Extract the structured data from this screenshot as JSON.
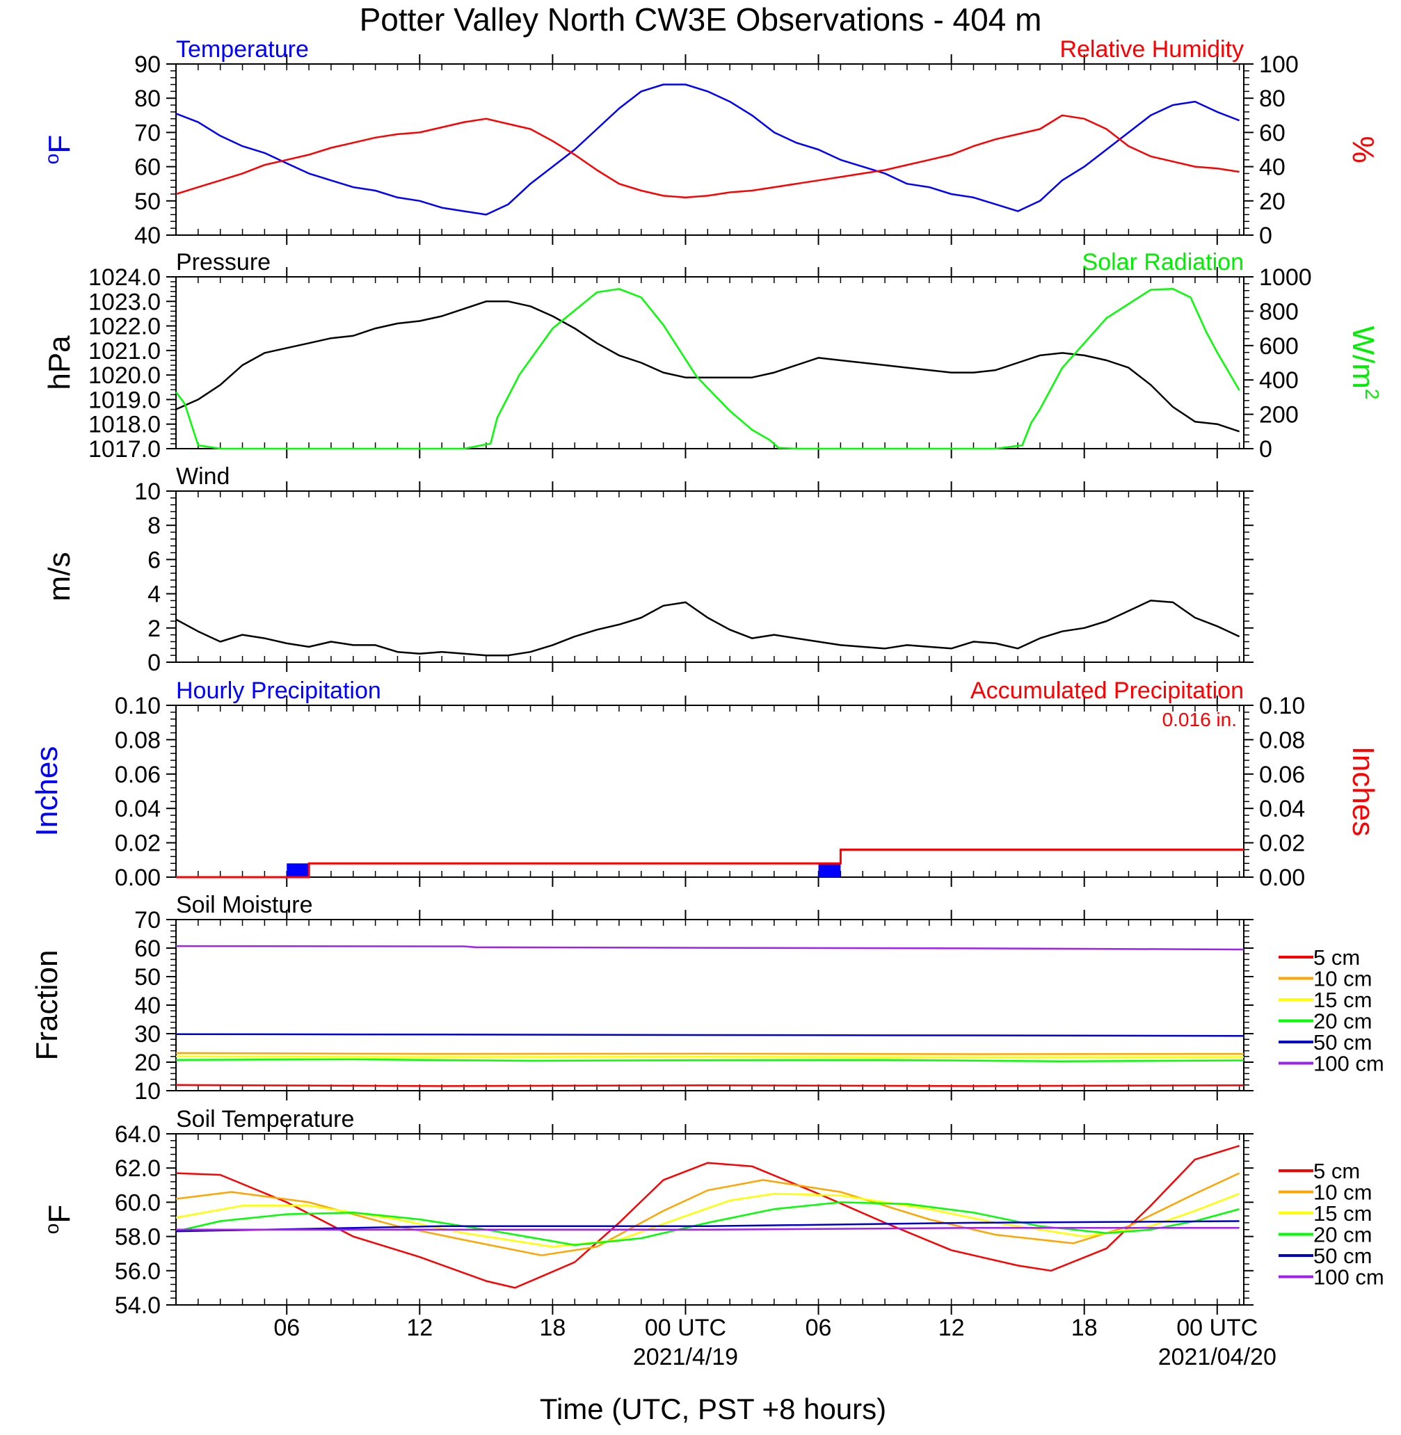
{
  "figure": {
    "title": "Potter Valley North CW3E Observations - 404 m",
    "xlabel": "Time (UTC, PST +8 hours)",
    "x_ticks": [
      {
        "hour": 6,
        "label": "06",
        "date": ""
      },
      {
        "hour": 12,
        "label": "12",
        "date": ""
      },
      {
        "hour": 18,
        "label": "18",
        "date": ""
      },
      {
        "hour": 24,
        "label": "00 UTC",
        "date": "2021/4/19"
      },
      {
        "hour": 30,
        "label": "06",
        "date": ""
      },
      {
        "hour": 36,
        "label": "12",
        "date": ""
      },
      {
        "hour": 42,
        "label": "18",
        "date": ""
      },
      {
        "hour": 48,
        "label": "00 UTC",
        "date": "2021/04/20"
      }
    ],
    "x_range_hours": [
      1,
      49.2
    ]
  },
  "chart_data": [
    {
      "id": "temp_rh",
      "type": "line",
      "title_left": "Temperature",
      "title_right": "Relative Humidity",
      "ylabel_left": "oF",
      "ylabel_right": "%",
      "ylim_left": [
        40,
        90
      ],
      "ylim_right": [
        0,
        100
      ],
      "yticks_left": [
        "90",
        "80",
        "70",
        "60",
        "50",
        "40"
      ],
      "yticks_right": [
        "100",
        "80",
        "60",
        "40",
        "20",
        "0"
      ],
      "series": [
        {
          "name": "Temperature",
          "axis": "left",
          "color": "#0000ff",
          "x": [
            1,
            2,
            3,
            4,
            5,
            6,
            7,
            8,
            9,
            10,
            11,
            12,
            13,
            14,
            15,
            16,
            17,
            18,
            19,
            20,
            21,
            22,
            23,
            24,
            25,
            26,
            27,
            28,
            29,
            30,
            31,
            32,
            33,
            34,
            35,
            36,
            37,
            38,
            39,
            40,
            41,
            42,
            43,
            44,
            45,
            46,
            47,
            48,
            49
          ],
          "y": [
            75.5,
            73,
            69,
            66,
            64,
            61,
            58,
            56,
            54,
            53,
            51,
            50,
            48,
            47,
            46,
            49,
            55,
            60,
            65,
            71,
            77,
            82,
            84,
            84,
            82,
            79,
            75,
            70,
            67,
            65,
            62,
            60,
            58,
            55,
            54,
            52,
            51,
            49,
            47,
            50,
            56,
            60,
            65,
            70,
            75,
            78,
            79,
            76,
            73.5
          ]
        },
        {
          "name": "Relative Humidity",
          "axis": "right",
          "color": "#ff0000",
          "x": [
            1,
            2,
            3,
            4,
            5,
            6,
            7,
            8,
            9,
            10,
            11,
            12,
            13,
            14,
            15,
            16,
            17,
            18,
            19,
            20,
            21,
            22,
            23,
            24,
            25,
            26,
            27,
            28,
            29,
            30,
            31,
            32,
            33,
            34,
            35,
            36,
            37,
            38,
            39,
            40,
            41,
            42,
            43,
            44,
            45,
            46,
            47,
            48,
            49
          ],
          "y": [
            24,
            28,
            32,
            36,
            41,
            44,
            47,
            51,
            54,
            57,
            59,
            60,
            63,
            66,
            68,
            65,
            62,
            55,
            47,
            38,
            30,
            26,
            23,
            22,
            23,
            25,
            26,
            28,
            30,
            32,
            34,
            36,
            38,
            41,
            44,
            47,
            52,
            56,
            59,
            62,
            70,
            68,
            62,
            52,
            46,
            43,
            40,
            39,
            37
          ]
        }
      ]
    },
    {
      "id": "pres_solar",
      "type": "line",
      "title_left": "Pressure",
      "title_right": "Solar Radiation",
      "ylabel_left": "hPa",
      "ylabel_right": "W/m",
      "ylabel_right_sup": "2",
      "ylim_left": [
        1017,
        1024
      ],
      "ylim_right": [
        0,
        1000
      ],
      "yticks_left": [
        "1024.0",
        "1023.0",
        "1022.0",
        "1021.0",
        "1020.0",
        "1019.0",
        "1018.0",
        "1017.0"
      ],
      "yticks_right": [
        "1000",
        "800",
        "600",
        "400",
        "200",
        "0"
      ],
      "series": [
        {
          "name": "Pressure",
          "axis": "left",
          "color": "#000000",
          "x": [
            1,
            2,
            3,
            4,
            5,
            6,
            7,
            8,
            9,
            10,
            11,
            12,
            13,
            14,
            15,
            16,
            17,
            18,
            19,
            20,
            21,
            22,
            23,
            24,
            25,
            26,
            27,
            28,
            29,
            30,
            31,
            32,
            33,
            34,
            35,
            36,
            37,
            38,
            39,
            40,
            41,
            42,
            43,
            44,
            45,
            46,
            47,
            48,
            49
          ],
          "y": [
            1018.6,
            1019.0,
            1019.6,
            1020.4,
            1020.9,
            1021.1,
            1021.3,
            1021.5,
            1021.6,
            1021.9,
            1022.1,
            1022.2,
            1022.4,
            1022.7,
            1023.0,
            1023.0,
            1022.8,
            1022.4,
            1021.9,
            1021.3,
            1020.8,
            1020.5,
            1020.1,
            1019.9,
            1019.9,
            1019.9,
            1019.9,
            1020.1,
            1020.4,
            1020.7,
            1020.6,
            1020.5,
            1020.4,
            1020.3,
            1020.2,
            1020.1,
            1020.1,
            1020.2,
            1020.5,
            1020.8,
            1020.9,
            1020.8,
            1020.6,
            1020.3,
            1019.6,
            1018.7,
            1018.1,
            1018.0,
            1017.7
          ]
        },
        {
          "name": "Solar Radiation",
          "axis": "right",
          "color": "#00ff00",
          "x": [
            1,
            1.4,
            2,
            3,
            5,
            8,
            11,
            14,
            15.2,
            15.5,
            16.5,
            18,
            20,
            21,
            22,
            23,
            24.5,
            26,
            27,
            27.8,
            28.2,
            29,
            32,
            35,
            38,
            39.2,
            39.6,
            40,
            41,
            43,
            45,
            46,
            46.8,
            47.5,
            48,
            49
          ],
          "y": [
            330,
            260,
            20,
            0,
            0,
            0,
            0,
            0,
            30,
            180,
            430,
            700,
            910,
            930,
            880,
            720,
            420,
            220,
            110,
            50,
            5,
            0,
            0,
            0,
            0,
            20,
            150,
            230,
            470,
            760,
            925,
            930,
            880,
            680,
            560,
            340
          ]
        }
      ]
    },
    {
      "id": "wind",
      "type": "line",
      "title_left": "Wind",
      "ylabel_left": "m/s",
      "ylim_left": [
        0,
        10
      ],
      "yticks_left": [
        "10",
        "8",
        "6",
        "4",
        "2",
        "0"
      ],
      "series": [
        {
          "name": "Wind",
          "axis": "left",
          "color": "#000000",
          "x": [
            1,
            2,
            3,
            4,
            5,
            6,
            7,
            8,
            9,
            10,
            11,
            12,
            13,
            14,
            15,
            16,
            17,
            18,
            19,
            20,
            21,
            22,
            23,
            24,
            25,
            26,
            27,
            28,
            29,
            30,
            31,
            32,
            33,
            34,
            35,
            36,
            37,
            38,
            39,
            40,
            41,
            42,
            43,
            44,
            45,
            46,
            47,
            48,
            49
          ],
          "y": [
            2.5,
            1.8,
            1.2,
            1.6,
            1.4,
            1.1,
            0.9,
            1.2,
            1.0,
            1.0,
            0.6,
            0.5,
            0.6,
            0.5,
            0.4,
            0.4,
            0.6,
            1.0,
            1.5,
            1.9,
            2.2,
            2.6,
            3.3,
            3.5,
            2.6,
            1.9,
            1.4,
            1.6,
            1.4,
            1.2,
            1.0,
            0.9,
            0.8,
            1.0,
            0.9,
            0.8,
            1.2,
            1.1,
            0.8,
            1.4,
            1.8,
            2.0,
            2.4,
            3.0,
            3.6,
            3.5,
            2.6,
            2.1,
            1.5
          ]
        }
      ]
    },
    {
      "id": "precip",
      "type": "bar",
      "title_left": "Hourly Precipitation",
      "title_right": "Accumulated Precipitation",
      "annotation": "0.016 in.",
      "ylabel_left": "Inches",
      "ylabel_right": "Inches",
      "ylim_left": [
        0,
        0.1
      ],
      "ylim_right": [
        0,
        0.1
      ],
      "yticks_left": [
        "0.10",
        "0.08",
        "0.06",
        "0.04",
        "0.02",
        "0.00"
      ],
      "yticks_right": [
        "0.10",
        "0.08",
        "0.06",
        "0.04",
        "0.02",
        "0.00"
      ],
      "bar_color": "#0000ff",
      "line_color": "#ff0000",
      "bars": [
        {
          "x": 6.5,
          "value": 0.008
        },
        {
          "x": 30.5,
          "value": 0.008
        }
      ],
      "accumulated": {
        "x": [
          1,
          7,
          7,
          31,
          31,
          49.2
        ],
        "y": [
          0,
          0,
          0.008,
          0.008,
          0.016,
          0.016
        ]
      }
    },
    {
      "id": "soil_moisture",
      "type": "line",
      "title_left": "Soil Moisture",
      "ylabel_left": "Fraction",
      "ylim_left": [
        10,
        70
      ],
      "yticks_left": [
        "70",
        "60",
        "50",
        "40",
        "30",
        "20",
        "10"
      ],
      "legend": "right",
      "series": [
        {
          "name": "5 cm",
          "color": "#ff0000",
          "x": [
            1,
            13,
            25,
            37,
            49.2
          ],
          "y": [
            12.0,
            11.6,
            11.9,
            11.6,
            11.9
          ]
        },
        {
          "name": "10 cm",
          "color": "#ffa500",
          "x": [
            1,
            13,
            25,
            37,
            49.2
          ],
          "y": [
            23.2,
            22.9,
            23.0,
            22.8,
            22.9
          ]
        },
        {
          "name": "15 cm",
          "color": "#ffff00",
          "x": [
            1,
            13,
            25,
            37,
            49.2
          ],
          "y": [
            22.0,
            21.8,
            21.9,
            21.7,
            21.8
          ]
        },
        {
          "name": "20 cm",
          "color": "#00ff00",
          "x": [
            1,
            9,
            17,
            25,
            33,
            41,
            49.2
          ],
          "y": [
            20.8,
            21.0,
            20.5,
            20.7,
            20.8,
            20.3,
            20.6
          ]
        },
        {
          "name": "50 cm",
          "color": "#0000cd",
          "x": [
            1,
            13,
            25,
            37,
            49.2
          ],
          "y": [
            29.8,
            29.7,
            29.5,
            29.4,
            29.2
          ]
        },
        {
          "name": "100 cm",
          "color": "#a020f0",
          "x": [
            1,
            14,
            14.5,
            25,
            37,
            49.2
          ],
          "y": [
            60.7,
            60.6,
            60.3,
            60.1,
            59.9,
            59.5
          ]
        }
      ]
    },
    {
      "id": "soil_temp",
      "type": "line",
      "title_left": "Soil Temperature",
      "ylabel_left": "oF",
      "ylim_left": [
        54,
        64
      ],
      "yticks_left": [
        "64.0",
        "62.0",
        "60.0",
        "58.0",
        "56.0",
        "54.0"
      ],
      "legend": "right",
      "series": [
        {
          "name": "5 cm",
          "color": "#ff0000",
          "x": [
            1,
            3,
            6,
            9,
            12,
            15,
            16.3,
            19,
            21,
            23,
            25,
            27,
            30,
            33,
            36,
            39,
            40.5,
            43,
            45,
            47,
            49
          ],
          "y": [
            61.7,
            61.6,
            60.0,
            58.0,
            56.8,
            55.4,
            55.0,
            56.5,
            58.8,
            61.3,
            62.3,
            62.1,
            60.5,
            58.8,
            57.2,
            56.3,
            56.0,
            57.3,
            59.8,
            62.5,
            63.3
          ]
        },
        {
          "name": "10 cm",
          "color": "#ffa500",
          "x": [
            1,
            3.5,
            7,
            11,
            14,
            17.5,
            20,
            23,
            25,
            27.5,
            31,
            35,
            38,
            41.5,
            44,
            47,
            49
          ],
          "y": [
            60.2,
            60.6,
            60.0,
            58.6,
            57.8,
            56.9,
            57.4,
            59.5,
            60.7,
            61.3,
            60.6,
            59.0,
            58.1,
            57.6,
            58.6,
            60.5,
            61.7
          ]
        },
        {
          "name": "15 cm",
          "color": "#ffff00",
          "x": [
            1,
            4,
            7,
            11,
            14,
            18,
            21,
            24,
            26,
            28,
            31,
            35,
            38,
            42,
            45,
            47,
            49
          ],
          "y": [
            59.1,
            59.8,
            59.8,
            59.0,
            58.2,
            57.4,
            57.8,
            59.2,
            60.1,
            60.5,
            60.4,
            59.6,
            58.8,
            58.0,
            58.6,
            59.5,
            60.5
          ]
        },
        {
          "name": "20 cm",
          "color": "#00ff00",
          "x": [
            1,
            3,
            6,
            9,
            12,
            15,
            19,
            22,
            25,
            28,
            31,
            34,
            37,
            40,
            43,
            45,
            47,
            49
          ],
          "y": [
            58.3,
            58.9,
            59.3,
            59.4,
            59.0,
            58.4,
            57.5,
            57.9,
            58.8,
            59.6,
            60.0,
            59.9,
            59.4,
            58.6,
            58.2,
            58.4,
            58.9,
            59.6
          ]
        },
        {
          "name": "50 cm",
          "color": "#0000cd",
          "x": [
            1,
            13,
            25,
            37,
            49
          ],
          "y": [
            58.3,
            58.6,
            58.6,
            58.8,
            58.9
          ]
        },
        {
          "name": "100 cm",
          "color": "#a020f0",
          "x": [
            1,
            13,
            25,
            37,
            49
          ],
          "y": [
            58.4,
            58.4,
            58.4,
            58.5,
            58.5
          ]
        }
      ]
    }
  ]
}
